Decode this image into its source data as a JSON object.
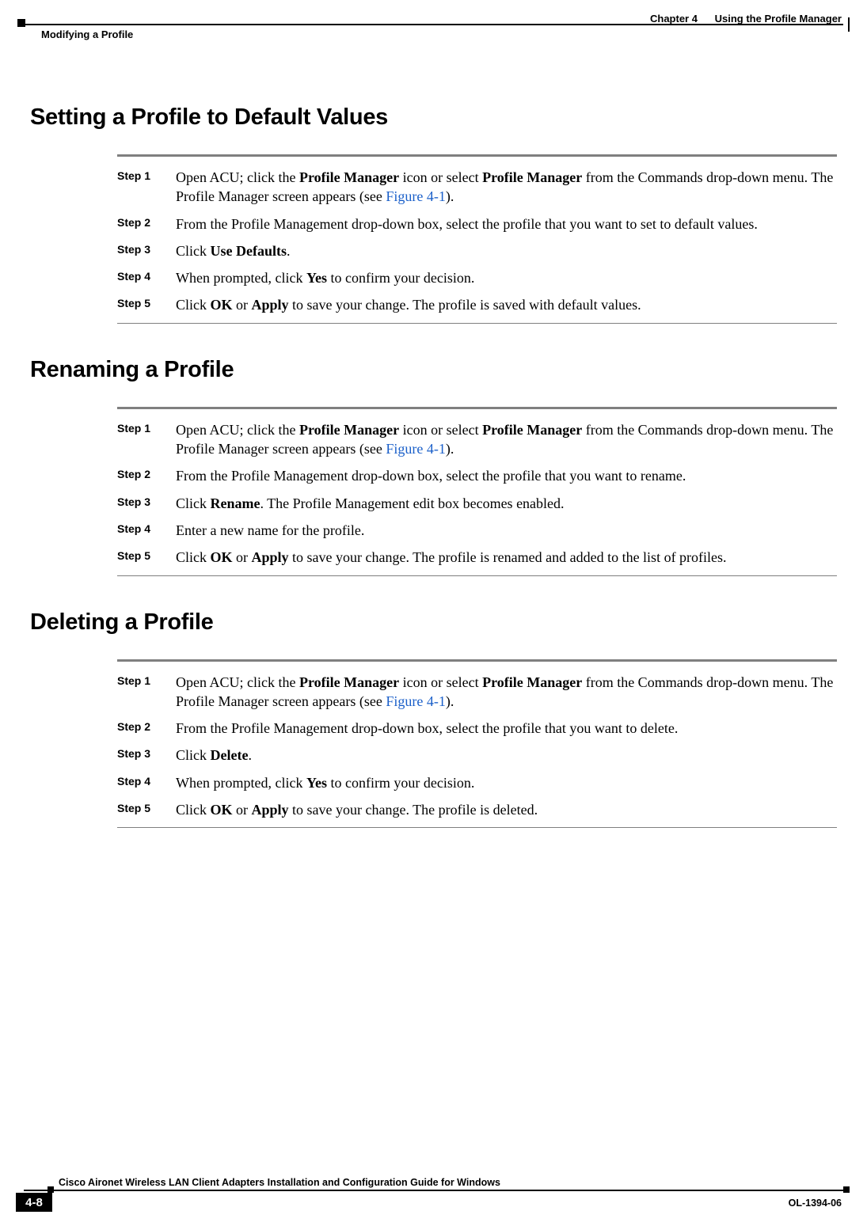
{
  "header": {
    "chapter_label": "Chapter 4",
    "chapter_title": "Using the Profile Manager",
    "section_breadcrumb": "Modifying a Profile"
  },
  "sections": [
    {
      "heading": "Setting a Profile to Default Values",
      "steps": [
        {
          "label": "Step 1",
          "segments": [
            {
              "t": "Open ACU; click the "
            },
            {
              "t": "Profile Manager",
              "b": true
            },
            {
              "t": " icon or select "
            },
            {
              "t": "Profile Manager",
              "b": true
            },
            {
              "t": " from the Commands drop-down menu. The Profile Manager screen appears (see "
            },
            {
              "t": "Figure 4-1",
              "link": true
            },
            {
              "t": ")."
            }
          ]
        },
        {
          "label": "Step 2",
          "segments": [
            {
              "t": "From the Profile Management drop-down box, select the profile that you want to set to default values."
            }
          ]
        },
        {
          "label": "Step 3",
          "segments": [
            {
              "t": "Click "
            },
            {
              "t": "Use Defaults",
              "b": true
            },
            {
              "t": "."
            }
          ]
        },
        {
          "label": "Step 4",
          "segments": [
            {
              "t": "When prompted, click "
            },
            {
              "t": "Yes",
              "b": true
            },
            {
              "t": " to confirm your decision."
            }
          ]
        },
        {
          "label": "Step 5",
          "segments": [
            {
              "t": "Click "
            },
            {
              "t": "OK",
              "b": true
            },
            {
              "t": " or "
            },
            {
              "t": "Apply",
              "b": true
            },
            {
              "t": " to save your change. The profile is saved with default values."
            }
          ]
        }
      ]
    },
    {
      "heading": "Renaming a Profile",
      "steps": [
        {
          "label": "Step 1",
          "segments": [
            {
              "t": "Open ACU; click the "
            },
            {
              "t": "Profile Manager",
              "b": true
            },
            {
              "t": " icon or select "
            },
            {
              "t": "Profile Manager",
              "b": true
            },
            {
              "t": " from the Commands drop-down menu. The Profile Manager screen appears (see "
            },
            {
              "t": "Figure 4-1",
              "link": true
            },
            {
              "t": ")."
            }
          ]
        },
        {
          "label": "Step 2",
          "segments": [
            {
              "t": "From the Profile Management drop-down box, select the profile that you want to rename."
            }
          ]
        },
        {
          "label": "Step 3",
          "segments": [
            {
              "t": "Click "
            },
            {
              "t": "Rename",
              "b": true
            },
            {
              "t": ". The Profile Management edit box becomes enabled."
            }
          ]
        },
        {
          "label": "Step 4",
          "segments": [
            {
              "t": "Enter a new name for the profile."
            }
          ]
        },
        {
          "label": "Step 5",
          "segments": [
            {
              "t": "Click "
            },
            {
              "t": "OK",
              "b": true
            },
            {
              "t": " or "
            },
            {
              "t": "Apply",
              "b": true
            },
            {
              "t": " to save your change. The profile is renamed and added to the list of profiles."
            }
          ]
        }
      ]
    },
    {
      "heading": "Deleting a Profile",
      "steps": [
        {
          "label": "Step 1",
          "segments": [
            {
              "t": "Open ACU; click the "
            },
            {
              "t": "Profile Manager",
              "b": true
            },
            {
              "t": " icon or select "
            },
            {
              "t": "Profile Manager",
              "b": true
            },
            {
              "t": " from the Commands drop-down menu. The Profile Manager screen appears (see "
            },
            {
              "t": "Figure 4-1",
              "link": true
            },
            {
              "t": ")."
            }
          ]
        },
        {
          "label": "Step 2",
          "segments": [
            {
              "t": "From the Profile Management drop-down box, select the profile that you want to delete."
            }
          ]
        },
        {
          "label": "Step 3",
          "segments": [
            {
              "t": "Click "
            },
            {
              "t": "Delete",
              "b": true
            },
            {
              "t": "."
            }
          ]
        },
        {
          "label": "Step 4",
          "segments": [
            {
              "t": "When prompted, click "
            },
            {
              "t": "Yes",
              "b": true
            },
            {
              "t": " to confirm your decision."
            }
          ]
        },
        {
          "label": "Step 5",
          "segments": [
            {
              "t": "Click "
            },
            {
              "t": "OK",
              "b": true
            },
            {
              "t": " or "
            },
            {
              "t": "Apply",
              "b": true
            },
            {
              "t": " to save your change. The profile is deleted."
            }
          ]
        }
      ]
    }
  ],
  "footer": {
    "guide_title": "Cisco Aironet Wireless LAN Client Adapters Installation and Configuration Guide for Windows",
    "doc_id": "OL-1394-06",
    "page_number": "4-8"
  },
  "style": {
    "link_color": "#1a5fc9",
    "rule_color": "#7f7f7f",
    "body_fontsize_pt": 13,
    "heading_fontsize_pt": 22,
    "step_label_fontsize_pt": 11
  }
}
